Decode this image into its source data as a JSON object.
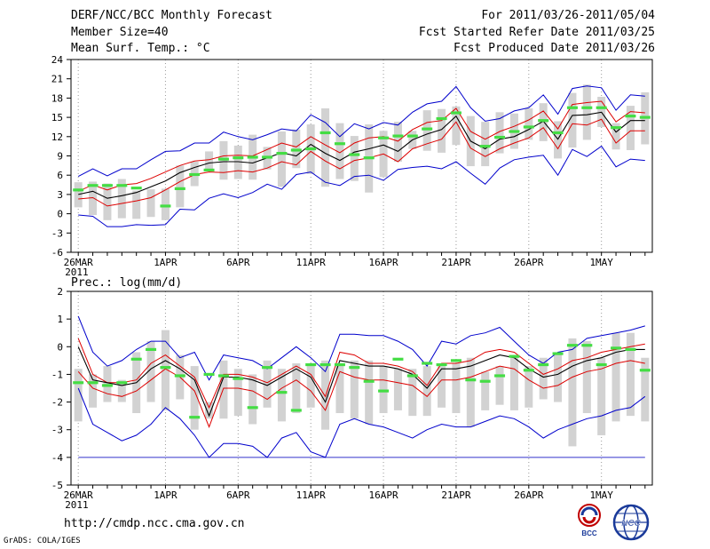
{
  "header": {
    "title": "DERF/NCC/BCC Monthly Forecast",
    "member_size": "Member Size=40",
    "variable": "Mean Surf. Temp.: °C",
    "period": "For 2011/03/26-2011/05/04",
    "started": "Fcst Started Refer Date 2011/03/25",
    "produced": "Fcst Produced Date 2011/03/26"
  },
  "footer": {
    "url": "http://cmdp.ncc.cma.gov.cn",
    "grads": "GrADS: COLA/IGES",
    "logo_bcc": "BCC",
    "logo_ncc": "NCC"
  },
  "colors": {
    "envelope": "#0000cc",
    "spread": "#dd0000",
    "mean": "#000000",
    "box": "#d2d2d2",
    "obs": "#44dd44",
    "grid": "#999999"
  },
  "chart_data": [
    {
      "type": "line",
      "title": "Mean Surf. Temp.: °C",
      "ylabel": "°C",
      "ylim": [
        -6,
        24
      ],
      "yticks": [
        -6,
        -3,
        0,
        3,
        6,
        9,
        12,
        15,
        18,
        21,
        24
      ],
      "xticks": [
        "26MAR",
        "1APR",
        "6APR",
        "11APR",
        "16APR",
        "21APR",
        "26APR",
        "1MAY"
      ],
      "xtick_days": [
        0,
        6,
        11,
        16,
        21,
        26,
        31,
        36
      ],
      "x_sublabel": "2011",
      "days": 40,
      "series": [
        {
          "name": "max",
          "values": [
            5.8,
            7.0,
            5.9,
            7.0,
            7.0,
            8.4,
            9.7,
            9.8,
            11.0,
            11.0,
            12.7,
            12.0,
            11.5,
            12.3,
            13.2,
            12.9,
            15.4,
            14.2,
            12.0,
            14.0,
            13.2,
            14.2,
            13.8,
            15.8,
            17.1,
            17.5,
            19.8,
            16.5,
            14.4,
            14.8,
            16.0,
            16.5,
            18.5,
            15.5,
            19.5,
            19.9,
            19.6,
            16.1,
            18.5,
            18.3
          ]
        },
        {
          "name": "upper",
          "values": [
            3.5,
            4.5,
            3.7,
            4.5,
            4.7,
            5.5,
            6.5,
            7.5,
            8.2,
            8.4,
            9.0,
            9.1,
            9.0,
            10.0,
            11.0,
            10.4,
            12.0,
            10.7,
            9.5,
            11.0,
            11.8,
            12.0,
            11.3,
            13.1,
            14.2,
            14.5,
            16.4,
            12.8,
            11.6,
            12.8,
            13.6,
            14.6,
            16.0,
            13.2,
            17.0,
            17.3,
            17.5,
            14.3,
            15.9,
            15.7
          ]
        },
        {
          "name": "mean",
          "values": [
            3.0,
            3.5,
            2.4,
            2.8,
            3.3,
            4.2,
            5.1,
            6.4,
            7.2,
            7.9,
            8.1,
            8.1,
            7.9,
            8.7,
            9.5,
            9.0,
            10.8,
            9.4,
            8.3,
            9.6,
            10.1,
            10.7,
            9.7,
            11.5,
            12.4,
            13.1,
            15.2,
            11.3,
            10.1,
            11.6,
            12.0,
            13.1,
            14.4,
            11.6,
            15.3,
            15.4,
            15.8,
            12.7,
            14.5,
            14.5
          ]
        },
        {
          "name": "lower",
          "values": [
            2.3,
            2.5,
            1.2,
            1.6,
            2.0,
            2.5,
            3.7,
            5.0,
            6.1,
            6.5,
            6.4,
            6.7,
            6.5,
            7.1,
            8.1,
            7.6,
            9.7,
            8.2,
            7.0,
            8.3,
            8.7,
            9.3,
            8.1,
            10.1,
            10.9,
            11.6,
            14.3,
            10.2,
            8.9,
            10.1,
            11.0,
            11.8,
            13.4,
            10.1,
            14.0,
            13.8,
            14.7,
            11.0,
            12.9,
            12.9
          ]
        },
        {
          "name": "min",
          "values": [
            -0.2,
            -0.4,
            -2.0,
            -2.0,
            -1.7,
            -1.8,
            -1.7,
            0.7,
            0.6,
            2.4,
            3.1,
            2.5,
            3.3,
            4.6,
            3.8,
            6.1,
            6.5,
            4.9,
            4.4,
            5.8,
            6.0,
            5.2,
            6.9,
            7.2,
            7.4,
            7.0,
            8.1,
            6.3,
            4.6,
            7.1,
            8.4,
            8.8,
            9.1,
            6.0,
            10.0,
            8.9,
            10.5,
            7.3,
            8.5,
            8.3
          ]
        },
        {
          "name": "observed",
          "values": [
            3.7,
            4.4,
            4.4,
            4.4,
            4.0,
            null,
            1.2,
            3.9,
            6.1,
            6.8,
            8.5,
            8.7,
            8.8,
            8.8,
            9.4,
            9.9,
            10.1,
            12.6,
            10.9,
            9.2,
            8.7,
            11.8,
            12.1,
            12.1,
            13.2,
            14.8,
            15.7,
            null,
            10.5,
            11.9,
            12.8,
            13.5,
            14.5,
            12.6,
            16.5,
            16.5,
            16.5,
            13.4,
            15.2,
            15.0
          ]
        }
      ],
      "boxes": {
        "hi": [
          4.9,
          5.0,
          4.7,
          5.4,
          3.6,
          3.8,
          3.9,
          7.5,
          8.1,
          9.7,
          11.3,
          10.6,
          12.3,
          10.4,
          12.8,
          13.1,
          13.9,
          16.4,
          14.1,
          12.1,
          13.9,
          12.9,
          14.3,
          12.9,
          16.1,
          16.3,
          16.7,
          15.2,
          14.3,
          15.8,
          15.6,
          16.4,
          17.2,
          14.4,
          18.8,
          20.1,
          18.2,
          14.1,
          16.8,
          18.9
        ],
        "lo": [
          1.0,
          -0.2,
          -1.0,
          -0.7,
          -0.8,
          -0.5,
          -1.0,
          1.0,
          4.3,
          6.8,
          5.3,
          5.4,
          5.3,
          6.9,
          4.2,
          7.1,
          6.2,
          4.2,
          5.4,
          5.1,
          3.3,
          5.7,
          8.1,
          10.1,
          9.8,
          9.5,
          10.7,
          7.4,
          7.4,
          9.4,
          10.1,
          11.5,
          11.3,
          8.6,
          10.3,
          11.5,
          13.5,
          10.0,
          9.9,
          10.8
        ]
      }
    },
    {
      "type": "line",
      "title": "Prec.: log(mm/d)",
      "ylabel": "log(mm/d)",
      "ylim": [
        -5,
        2
      ],
      "yticks": [
        -5,
        -4,
        -3,
        -2,
        -1,
        0,
        1,
        2
      ],
      "xticks": [
        "26MAR",
        "1APR",
        "6APR",
        "11APR",
        "16APR",
        "21APR",
        "26APR",
        "1MAY"
      ],
      "xtick_days": [
        0,
        6,
        11,
        16,
        21,
        26,
        31,
        36
      ],
      "x_sublabel": "2011",
      "days": 40,
      "series": [
        {
          "name": "max",
          "values": [
            1.1,
            -0.2,
            -0.7,
            -0.5,
            -0.1,
            0.2,
            0.2,
            -0.4,
            -0.2,
            -1.2,
            -0.3,
            -0.4,
            -0.5,
            -0.8,
            -0.4,
            0.0,
            -0.4,
            -0.9,
            0.45,
            0.45,
            0.4,
            0.4,
            0.2,
            -0.1,
            -0.7,
            0.2,
            0.1,
            0.4,
            0.5,
            0.7,
            0.2,
            -0.3,
            -0.6,
            -0.2,
            -0.1,
            0.3,
            0.4,
            0.5,
            0.6,
            0.75
          ]
        },
        {
          "name": "upper",
          "values": [
            0.3,
            -1.0,
            -1.3,
            -1.3,
            -1.2,
            -0.6,
            -0.3,
            -0.7,
            -1.1,
            -2.2,
            -1.0,
            -1.0,
            -1.1,
            -1.3,
            -1.0,
            -0.7,
            -1.0,
            -1.8,
            -0.2,
            -0.3,
            -0.6,
            -0.6,
            -0.7,
            -0.9,
            -1.4,
            -0.6,
            -0.6,
            -0.5,
            -0.2,
            -0.1,
            -0.2,
            -0.6,
            -1.0,
            -0.8,
            -0.5,
            -0.4,
            -0.2,
            -0.1,
            0.0,
            0.1
          ]
        },
        {
          "name": "mean",
          "values": [
            0.0,
            -1.2,
            -1.3,
            -1.4,
            -1.3,
            -0.8,
            -0.5,
            -0.8,
            -1.2,
            -2.5,
            -1.1,
            -1.1,
            -1.2,
            -1.4,
            -1.1,
            -0.8,
            -1.1,
            -2.0,
            -0.5,
            -0.6,
            -0.7,
            -0.7,
            -0.8,
            -1.0,
            -1.5,
            -0.8,
            -0.8,
            -0.7,
            -0.5,
            -0.3,
            -0.4,
            -0.8,
            -1.1,
            -1.0,
            -0.7,
            -0.5,
            -0.4,
            -0.2,
            -0.1,
            -0.1
          ]
        },
        {
          "name": "lower",
          "values": [
            -0.9,
            -1.5,
            -1.7,
            -1.8,
            -1.6,
            -1.2,
            -0.8,
            -1.1,
            -1.6,
            -2.9,
            -1.5,
            -1.5,
            -1.6,
            -1.9,
            -1.5,
            -1.2,
            -1.6,
            -2.3,
            -0.9,
            -1.1,
            -1.2,
            -1.2,
            -1.3,
            -1.4,
            -1.8,
            -1.2,
            -1.2,
            -1.1,
            -0.9,
            -0.7,
            -0.8,
            -1.2,
            -1.5,
            -1.4,
            -1.1,
            -0.9,
            -0.8,
            -0.6,
            -0.5,
            -0.6
          ]
        },
        {
          "name": "min",
          "values": [
            -1.5,
            -2.8,
            -3.1,
            -3.4,
            -3.2,
            -2.8,
            -2.2,
            -2.6,
            -3.2,
            -4.0,
            -3.5,
            -3.5,
            -3.6,
            -4.0,
            -3.3,
            -3.1,
            -3.8,
            -4.0,
            -2.8,
            -2.6,
            -2.8,
            -2.9,
            -3.1,
            -3.3,
            -3.0,
            -2.8,
            -2.9,
            -2.9,
            -2.7,
            -2.5,
            -2.6,
            -2.9,
            -3.3,
            -3.0,
            -2.8,
            -2.6,
            -2.5,
            -2.3,
            -2.2,
            -1.8
          ]
        },
        {
          "name": "observed",
          "values": [
            -1.3,
            -1.3,
            -1.4,
            -1.3,
            -0.45,
            -0.1,
            -0.75,
            -1.05,
            -2.55,
            -1.0,
            -1.05,
            -1.15,
            -2.2,
            -0.75,
            -1.65,
            -2.3,
            -0.65,
            -0.65,
            -0.65,
            -0.75,
            -1.25,
            -1.6,
            -0.45,
            -1.05,
            -0.6,
            -0.65,
            -0.5,
            -1.2,
            -1.25,
            -1.05,
            -0.35,
            -0.85,
            -0.65,
            -0.25,
            0.05,
            0.05,
            -0.65,
            -0.05,
            -0.1,
            -0.85
          ]
        }
      ],
      "boxes": {
        "hi": [
          -0.8,
          -1.0,
          -0.7,
          -1.2,
          -0.2,
          0.2,
          0.6,
          -0.3,
          -0.7,
          -2.0,
          -0.5,
          -0.8,
          -1.0,
          -0.5,
          -0.8,
          -0.6,
          -0.6,
          -0.5,
          -0.6,
          -0.5,
          -0.5,
          -0.7,
          -0.8,
          -0.8,
          -0.7,
          -0.7,
          -0.6,
          -0.4,
          -0.9,
          -0.7,
          -0.3,
          -0.7,
          -0.4,
          -0.2,
          0.3,
          0.2,
          -0.4,
          0.5,
          0.5,
          -0.4
        ],
        "lo": [
          -2.7,
          -2.2,
          -2.0,
          -2.0,
          -2.4,
          -2.0,
          -2.3,
          -1.9,
          -3.0,
          -2.6,
          -2.6,
          -2.5,
          -2.8,
          -2.2,
          -2.7,
          -2.4,
          -2.2,
          -3.0,
          -2.4,
          -2.6,
          -2.8,
          -2.4,
          -2.3,
          -2.5,
          -2.5,
          -2.2,
          -2.4,
          -2.9,
          -2.3,
          -2.1,
          -2.3,
          -2.2,
          -1.9,
          -2.0,
          -3.6,
          -2.4,
          -3.2,
          -2.7,
          -2.5,
          -2.7
        ]
      }
    }
  ]
}
